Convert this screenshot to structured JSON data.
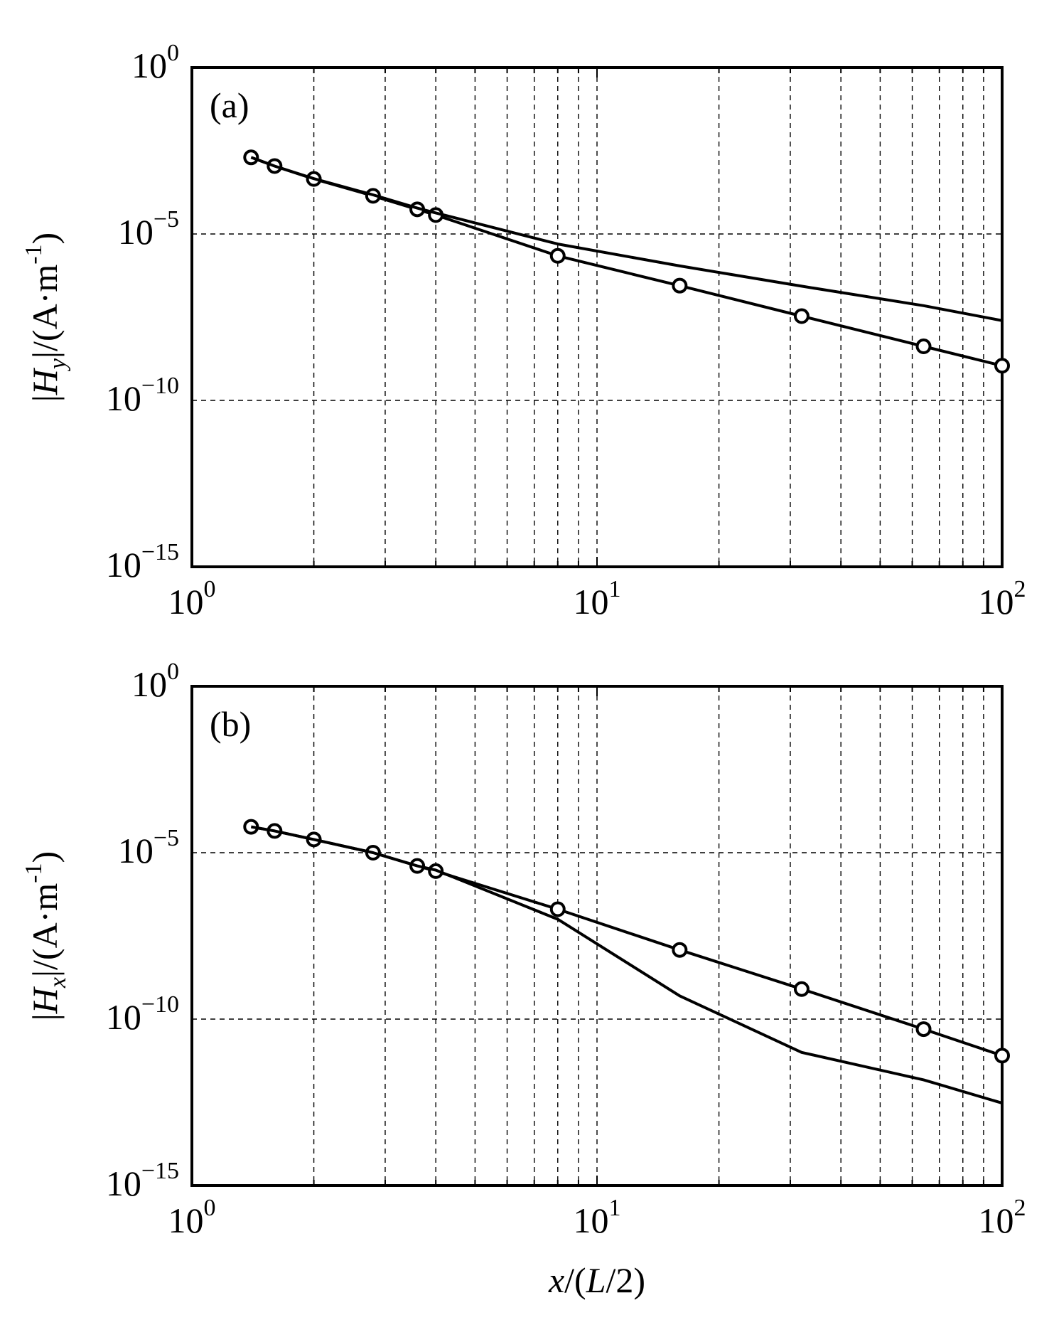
{
  "chart_data": [
    {
      "type": "line",
      "panel_label": "(a)",
      "x_scale": "log",
      "y_scale": "log",
      "xlim": [
        1,
        100
      ],
      "ylim": [
        1e-15,
        1
      ],
      "grid": true,
      "xlabel": {
        "prefix": "",
        "italic": "",
        "suffix": ""
      },
      "ylabel": {
        "prefix": "|",
        "italic": "H",
        "sub": "y",
        "mid": "|/(A·m",
        "sup": "-1",
        "suffix": ")"
      },
      "x_ticks": [
        {
          "value": 1,
          "base": "10",
          "exp": "0"
        },
        {
          "value": 10,
          "base": "10",
          "exp": "1"
        },
        {
          "value": 100,
          "base": "10",
          "exp": "2"
        }
      ],
      "y_ticks": [
        {
          "value": 1,
          "base": "10",
          "exp": "0"
        },
        {
          "value": 1e-05,
          "base": "10",
          "exp": "−5"
        },
        {
          "value": 1e-10,
          "base": "10",
          "exp": "−10"
        },
        {
          "value": 1e-15,
          "base": "10",
          "exp": "−15"
        }
      ],
      "series": [
        {
          "marker": "circle",
          "x": [
            1.4,
            1.6,
            2.0,
            2.8,
            3.6,
            4.0,
            8.0,
            16,
            32,
            64,
            100
          ],
          "y": [
            0.002,
            0.0011,
            0.00045,
            0.00014,
            5.5e-05,
            3.7e-05,
            2.2e-06,
            2.8e-07,
            3.4e-08,
            4.2e-09,
            1.1e-09
          ]
        },
        {
          "marker": "none",
          "x": [
            1.4,
            1.6,
            2.0,
            2.8,
            3.6,
            4.0,
            8.0,
            16,
            32,
            64,
            100
          ],
          "y": [
            0.002,
            0.0011,
            0.00046,
            0.00015,
            6e-05,
            4.3e-05,
            5e-06,
            1.1e-06,
            2.7e-07,
            7e-08,
            2.5e-08
          ]
        }
      ]
    },
    {
      "type": "line",
      "panel_label": "(b)",
      "x_scale": "log",
      "y_scale": "log",
      "xlim": [
        1,
        100
      ],
      "ylim": [
        1e-15,
        1
      ],
      "grid": true,
      "xlabel": {
        "prefix": "",
        "italic": "x",
        "mid": "/(",
        "italic2": "L",
        "suffix": "/2)"
      },
      "ylabel": {
        "prefix": "|",
        "italic": "H",
        "sub": "x",
        "mid": "|/(A·m",
        "sup": "-1",
        "suffix": ")"
      },
      "x_ticks": [
        {
          "value": 1,
          "base": "10",
          "exp": "0"
        },
        {
          "value": 10,
          "base": "10",
          "exp": "1"
        },
        {
          "value": 100,
          "base": "10",
          "exp": "2"
        }
      ],
      "y_ticks": [
        {
          "value": 1,
          "base": "10",
          "exp": "0"
        },
        {
          "value": 1e-05,
          "base": "10",
          "exp": "−5"
        },
        {
          "value": 1e-10,
          "base": "10",
          "exp": "−10"
        },
        {
          "value": 1e-15,
          "base": "10",
          "exp": "−15"
        }
      ],
      "series": [
        {
          "marker": "circle",
          "x": [
            1.4,
            1.6,
            2.0,
            2.8,
            3.6,
            4.0,
            8.0,
            16,
            32,
            64,
            100
          ],
          "y": [
            6e-05,
            4.5e-05,
            2.5e-05,
            1e-05,
            4e-06,
            2.8e-06,
            2e-07,
            1.2e-08,
            8e-10,
            5e-11,
            8e-12
          ]
        },
        {
          "marker": "none",
          "x": [
            1.4,
            1.6,
            2.0,
            2.8,
            3.6,
            4.0,
            8.0,
            16,
            32,
            64,
            100
          ],
          "y": [
            6e-05,
            4.5e-05,
            2.5e-05,
            1e-05,
            4e-06,
            3e-06,
            1e-07,
            5e-10,
            1e-11,
            1.5e-12,
            3e-13
          ]
        }
      ]
    }
  ]
}
